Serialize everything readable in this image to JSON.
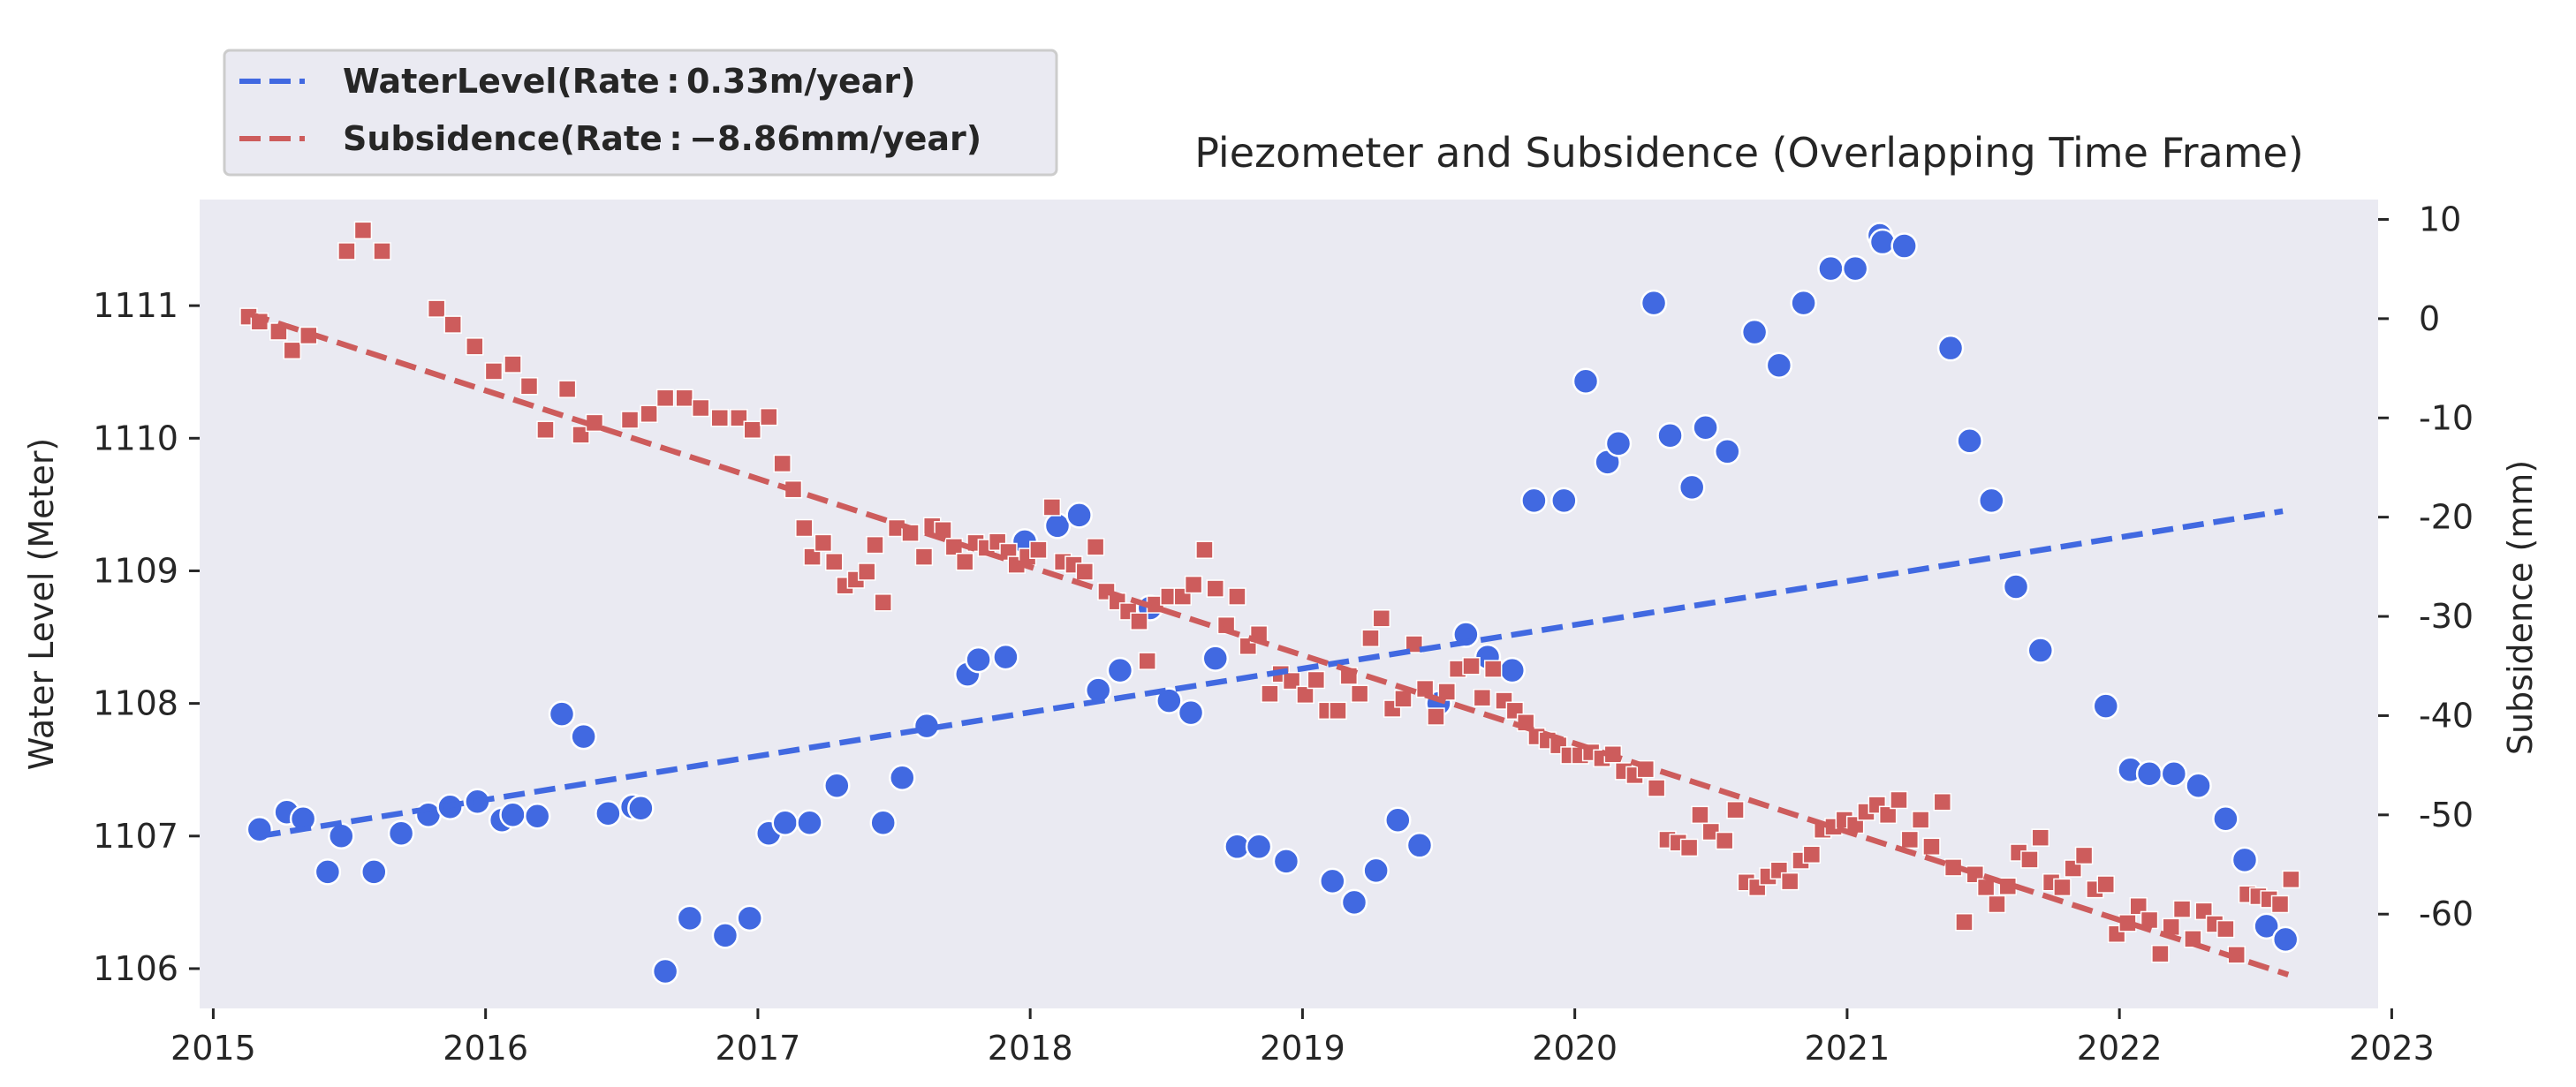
{
  "chart_data": {
    "type": "scatter",
    "title": "Piezometer and Subsidence (Overlapping Time Frame)",
    "xlabel": "",
    "ylabel": "Water Level (Meter)",
    "ylabel_right": "Subsidence (mm)",
    "xlim": [
      2014.95,
      2022.95
    ],
    "ylim": [
      1105.7,
      1111.8
    ],
    "ylim_right": [
      -69.5,
      12.0
    ],
    "x_ticks": [
      2015,
      2016,
      2017,
      2018,
      2019,
      2020,
      2021,
      2022,
      2023
    ],
    "y_ticks": [
      1106,
      1107,
      1108,
      1109,
      1110,
      1111
    ],
    "y_ticks_right": [
      10,
      0,
      -10,
      -20,
      -30,
      -40,
      -50,
      -60
    ],
    "grid": false,
    "legend_position": "top-left outside",
    "colors": {
      "water": "#4169e1",
      "subsidence": "#cd5c5c",
      "background": "#eaeaf2"
    },
    "series": [
      {
        "name": "WaterLevel",
        "axis": "left",
        "marker": "circle",
        "color": "#4169e1",
        "points": [
          [
            2015.17,
            1107.05
          ],
          [
            2015.27,
            1107.18
          ],
          [
            2015.33,
            1107.13
          ],
          [
            2015.42,
            1106.73
          ],
          [
            2015.47,
            1107.0
          ],
          [
            2015.59,
            1106.73
          ],
          [
            2015.69,
            1107.02
          ],
          [
            2015.79,
            1107.16
          ],
          [
            2015.87,
            1107.22
          ],
          [
            2015.97,
            1107.26
          ],
          [
            2016.06,
            1107.12
          ],
          [
            2016.1,
            1107.16
          ],
          [
            2016.19,
            1107.15
          ],
          [
            2016.28,
            1107.92
          ],
          [
            2016.36,
            1107.75
          ],
          [
            2016.45,
            1107.17
          ],
          [
            2016.54,
            1107.22
          ],
          [
            2016.57,
            1107.21
          ],
          [
            2016.66,
            1105.98
          ],
          [
            2016.75,
            1106.38
          ],
          [
            2016.88,
            1106.25
          ],
          [
            2016.97,
            1106.38
          ],
          [
            2017.04,
            1107.02
          ],
          [
            2017.1,
            1107.1
          ],
          [
            2017.19,
            1107.1
          ],
          [
            2017.29,
            1107.38
          ],
          [
            2017.46,
            1107.1
          ],
          [
            2017.53,
            1107.44
          ],
          [
            2017.62,
            1107.83
          ],
          [
            2017.77,
            1108.22
          ],
          [
            2017.81,
            1108.33
          ],
          [
            2017.91,
            1108.35
          ],
          [
            2017.98,
            1109.22
          ],
          [
            2018.1,
            1109.34
          ],
          [
            2018.18,
            1109.42
          ],
          [
            2018.25,
            1108.1
          ],
          [
            2018.33,
            1108.25
          ],
          [
            2018.44,
            1108.72
          ],
          [
            2018.51,
            1108.02
          ],
          [
            2018.59,
            1107.93
          ],
          [
            2018.68,
            1108.34
          ],
          [
            2018.76,
            1106.92
          ],
          [
            2018.84,
            1106.92
          ],
          [
            2018.94,
            1106.81
          ],
          [
            2019.11,
            1106.66
          ],
          [
            2019.19,
            1106.5
          ],
          [
            2019.27,
            1106.74
          ],
          [
            2019.35,
            1107.12
          ],
          [
            2019.43,
            1106.93
          ],
          [
            2019.5,
            1108.0
          ],
          [
            2019.6,
            1108.52
          ],
          [
            2019.68,
            1108.35
          ],
          [
            2019.77,
            1108.25
          ],
          [
            2019.85,
            1109.53
          ],
          [
            2019.96,
            1109.53
          ],
          [
            2020.04,
            1110.43
          ],
          [
            2020.12,
            1109.82
          ],
          [
            2020.16,
            1109.96
          ],
          [
            2020.29,
            1111.02
          ],
          [
            2020.35,
            1110.02
          ],
          [
            2020.43,
            1109.63
          ],
          [
            2020.48,
            1110.08
          ],
          [
            2020.56,
            1109.9
          ],
          [
            2020.66,
            1110.8
          ],
          [
            2020.75,
            1110.55
          ],
          [
            2020.84,
            1111.02
          ],
          [
            2020.94,
            1111.28
          ],
          [
            2021.03,
            1111.28
          ],
          [
            2021.12,
            1111.53
          ],
          [
            2021.13,
            1111.48
          ],
          [
            2021.21,
            1111.45
          ],
          [
            2021.38,
            1110.68
          ],
          [
            2021.45,
            1109.98
          ],
          [
            2021.53,
            1109.53
          ],
          [
            2021.62,
            1108.88
          ],
          [
            2021.71,
            1108.4
          ],
          [
            2021.95,
            1107.98
          ],
          [
            2022.04,
            1107.5
          ],
          [
            2022.11,
            1107.47
          ],
          [
            2022.2,
            1107.47
          ],
          [
            2022.29,
            1107.38
          ],
          [
            2022.39,
            1107.13
          ],
          [
            2022.46,
            1106.82
          ],
          [
            2022.54,
            1106.32
          ],
          [
            2022.61,
            1106.22
          ]
        ],
        "trend": {
          "x": [
            2015.17,
            2022.6
          ],
          "y": [
            1107.0,
            1109.45
          ]
        }
      },
      {
        "name": "Subsidence",
        "axis": "right",
        "marker": "square",
        "color": "#cd5c5c",
        "points": [
          [
            2015.13,
            0.2
          ],
          [
            2015.17,
            -0.3
          ],
          [
            2015.24,
            -1.3
          ],
          [
            2015.29,
            -3.2
          ],
          [
            2015.35,
            -1.7
          ],
          [
            2015.49,
            6.8
          ],
          [
            2015.55,
            8.9
          ],
          [
            2015.62,
            6.8
          ],
          [
            2015.82,
            1.0
          ],
          [
            2015.88,
            -0.6
          ],
          [
            2015.96,
            -2.8
          ],
          [
            2016.03,
            -5.3
          ],
          [
            2016.1,
            -4.6
          ],
          [
            2016.16,
            -6.8
          ],
          [
            2016.22,
            -11.2
          ],
          [
            2016.3,
            -7.1
          ],
          [
            2016.35,
            -11.7
          ],
          [
            2016.4,
            -10.5
          ],
          [
            2016.53,
            -10.2
          ],
          [
            2016.6,
            -9.6
          ],
          [
            2016.66,
            -8.0
          ],
          [
            2016.73,
            -8.0
          ],
          [
            2016.79,
            -9.0
          ],
          [
            2016.86,
            -10.0
          ],
          [
            2016.93,
            -10.0
          ],
          [
            2016.98,
            -11.2
          ],
          [
            2017.04,
            -9.9
          ],
          [
            2017.09,
            -14.6
          ],
          [
            2017.13,
            -17.2
          ],
          [
            2017.17,
            -21.1
          ],
          [
            2017.2,
            -24.0
          ],
          [
            2017.24,
            -22.6
          ],
          [
            2017.28,
            -24.5
          ],
          [
            2017.32,
            -26.9
          ],
          [
            2017.36,
            -26.3
          ],
          [
            2017.4,
            -25.5
          ],
          [
            2017.43,
            -22.8
          ],
          [
            2017.46,
            -28.6
          ],
          [
            2017.51,
            -21.1
          ],
          [
            2017.56,
            -21.6
          ],
          [
            2017.61,
            -24.0
          ],
          [
            2017.64,
            -20.9
          ],
          [
            2017.68,
            -21.3
          ],
          [
            2017.72,
            -23.0
          ],
          [
            2017.76,
            -24.5
          ],
          [
            2017.8,
            -22.6
          ],
          [
            2017.84,
            -23.1
          ],
          [
            2017.88,
            -22.5
          ],
          [
            2017.92,
            -23.5
          ],
          [
            2017.95,
            -24.8
          ],
          [
            2017.99,
            -24.0
          ],
          [
            2018.03,
            -23.3
          ],
          [
            2018.08,
            -19.0
          ],
          [
            2018.12,
            -24.5
          ],
          [
            2018.16,
            -24.8
          ],
          [
            2018.2,
            -25.5
          ],
          [
            2018.24,
            -23.0
          ],
          [
            2018.28,
            -27.5
          ],
          [
            2018.32,
            -28.5
          ],
          [
            2018.36,
            -29.5
          ],
          [
            2018.4,
            -30.5
          ],
          [
            2018.43,
            -34.5
          ],
          [
            2018.46,
            -28.8
          ],
          [
            2018.51,
            -28.0
          ],
          [
            2018.56,
            -28.0
          ],
          [
            2018.6,
            -26.8
          ],
          [
            2018.64,
            -23.3
          ],
          [
            2018.68,
            -27.2
          ],
          [
            2018.72,
            -30.9
          ],
          [
            2018.76,
            -28.0
          ],
          [
            2018.8,
            -33.0
          ],
          [
            2018.84,
            -31.8
          ],
          [
            2018.88,
            -37.8
          ],
          [
            2018.92,
            -35.8
          ],
          [
            2018.96,
            -36.5
          ],
          [
            2019.01,
            -37.9
          ],
          [
            2019.05,
            -36.4
          ],
          [
            2019.09,
            -39.5
          ],
          [
            2019.13,
            -39.5
          ],
          [
            2019.17,
            -36.0
          ],
          [
            2019.21,
            -37.8
          ],
          [
            2019.25,
            -32.2
          ],
          [
            2019.29,
            -30.2
          ],
          [
            2019.33,
            -39.3
          ],
          [
            2019.37,
            -38.3
          ],
          [
            2019.41,
            -32.8
          ],
          [
            2019.45,
            -37.3
          ],
          [
            2019.49,
            -40.1
          ],
          [
            2019.53,
            -37.6
          ],
          [
            2019.57,
            -35.3
          ],
          [
            2019.62,
            -35.0
          ],
          [
            2019.66,
            -38.2
          ],
          [
            2019.7,
            -35.3
          ],
          [
            2019.74,
            -38.5
          ],
          [
            2019.78,
            -39.5
          ],
          [
            2019.82,
            -40.7
          ],
          [
            2019.86,
            -42.1
          ],
          [
            2019.9,
            -42.5
          ],
          [
            2019.94,
            -43.0
          ],
          [
            2019.98,
            -44.0
          ],
          [
            2020.02,
            -44.0
          ],
          [
            2020.06,
            -43.7
          ],
          [
            2020.1,
            -44.3
          ],
          [
            2020.14,
            -43.9
          ],
          [
            2020.18,
            -45.6
          ],
          [
            2020.22,
            -46.0
          ],
          [
            2020.26,
            -45.4
          ],
          [
            2020.3,
            -47.3
          ],
          [
            2020.34,
            -52.5
          ],
          [
            2020.38,
            -52.8
          ],
          [
            2020.42,
            -53.3
          ],
          [
            2020.46,
            -50.0
          ],
          [
            2020.5,
            -51.7
          ],
          [
            2020.55,
            -52.6
          ],
          [
            2020.59,
            -49.5
          ],
          [
            2020.63,
            -56.8
          ],
          [
            2020.67,
            -57.3
          ],
          [
            2020.71,
            -56.2
          ],
          [
            2020.75,
            -55.6
          ],
          [
            2020.79,
            -56.7
          ],
          [
            2020.83,
            -54.6
          ],
          [
            2020.87,
            -54.0
          ],
          [
            2020.91,
            -51.5
          ],
          [
            2020.95,
            -51.2
          ],
          [
            2020.99,
            -50.5
          ],
          [
            2021.03,
            -51.0
          ],
          [
            2021.07,
            -49.7
          ],
          [
            2021.11,
            -49.0
          ],
          [
            2021.15,
            -50.0
          ],
          [
            2021.19,
            -48.5
          ],
          [
            2021.23,
            -52.5
          ],
          [
            2021.27,
            -50.5
          ],
          [
            2021.31,
            -53.2
          ],
          [
            2021.35,
            -48.7
          ],
          [
            2021.39,
            -55.3
          ],
          [
            2021.43,
            -60.8
          ],
          [
            2021.47,
            -56.0
          ],
          [
            2021.51,
            -57.3
          ],
          [
            2021.55,
            -59.0
          ],
          [
            2021.59,
            -57.2
          ],
          [
            2021.63,
            -53.8
          ],
          [
            2021.67,
            -54.5
          ],
          [
            2021.71,
            -52.3
          ],
          [
            2021.75,
            -56.8
          ],
          [
            2021.79,
            -57.3
          ],
          [
            2021.83,
            -55.4
          ],
          [
            2021.87,
            -54.1
          ],
          [
            2021.91,
            -57.5
          ],
          [
            2021.95,
            -57.0
          ],
          [
            2021.99,
            -62.0
          ],
          [
            2022.03,
            -60.9
          ],
          [
            2022.07,
            -59.2
          ],
          [
            2022.11,
            -60.6
          ],
          [
            2022.15,
            -64.0
          ],
          [
            2022.19,
            -61.3
          ],
          [
            2022.23,
            -59.5
          ],
          [
            2022.27,
            -62.5
          ],
          [
            2022.31,
            -59.7
          ],
          [
            2022.35,
            -61.0
          ],
          [
            2022.39,
            -61.5
          ],
          [
            2022.43,
            -64.1
          ],
          [
            2022.47,
            -58.0
          ],
          [
            2022.51,
            -58.2
          ],
          [
            2022.55,
            -58.5
          ],
          [
            2022.59,
            -59.0
          ],
          [
            2022.63,
            -56.5
          ]
        ],
        "trend": {
          "x": [
            2015.13,
            2022.62
          ],
          "y": [
            0.5,
            -66.1
          ]
        }
      }
    ],
    "legend": {
      "items": [
        {
          "label": "WaterLevel(Rate : 0.33m/year)",
          "color": "#4169e1"
        },
        {
          "label": "Subsidence(Rate : −8.86mm/year)",
          "color": "#cd5c5c"
        }
      ]
    }
  }
}
